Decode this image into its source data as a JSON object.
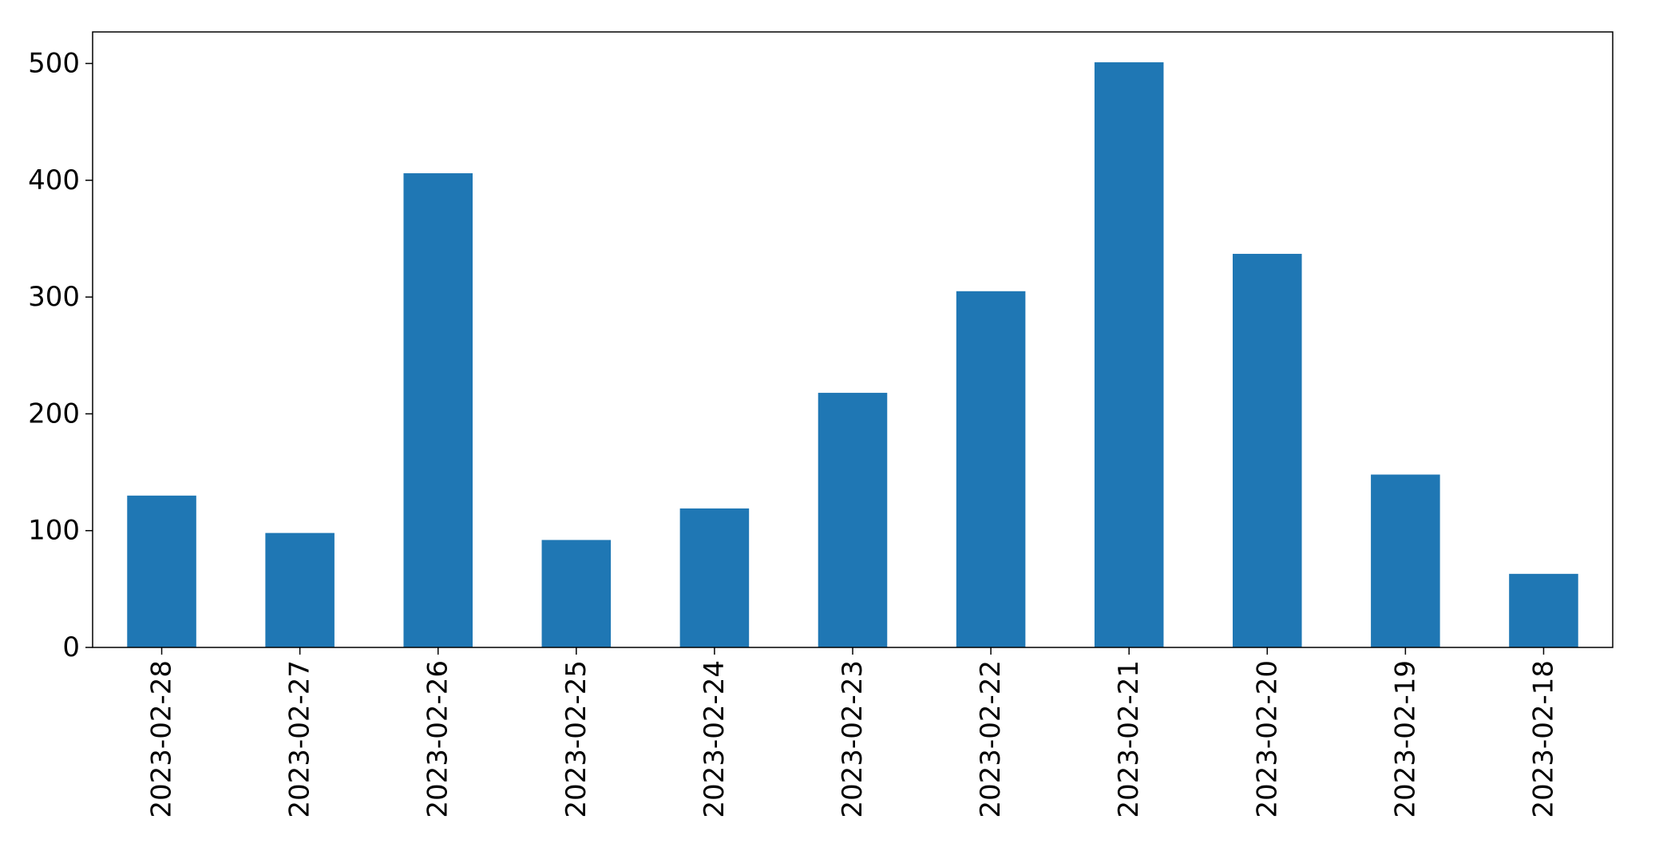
{
  "chart_data": {
    "type": "bar",
    "title": "",
    "xlabel": "",
    "ylabel": "",
    "categories": [
      "2023-02-28",
      "2023-02-27",
      "2023-02-26",
      "2023-02-25",
      "2023-02-24",
      "2023-02-23",
      "2023-02-22",
      "2023-02-21",
      "2023-02-20",
      "2023-02-19",
      "2023-02-18"
    ],
    "values": [
      130,
      98,
      406,
      92,
      119,
      218,
      305,
      501,
      337,
      148,
      63
    ],
    "ylim": [
      0,
      527
    ],
    "yticks": [
      0,
      100,
      200,
      300,
      400,
      500
    ],
    "bar_color": "#1f77b4",
    "grid": false,
    "legend": "none"
  }
}
